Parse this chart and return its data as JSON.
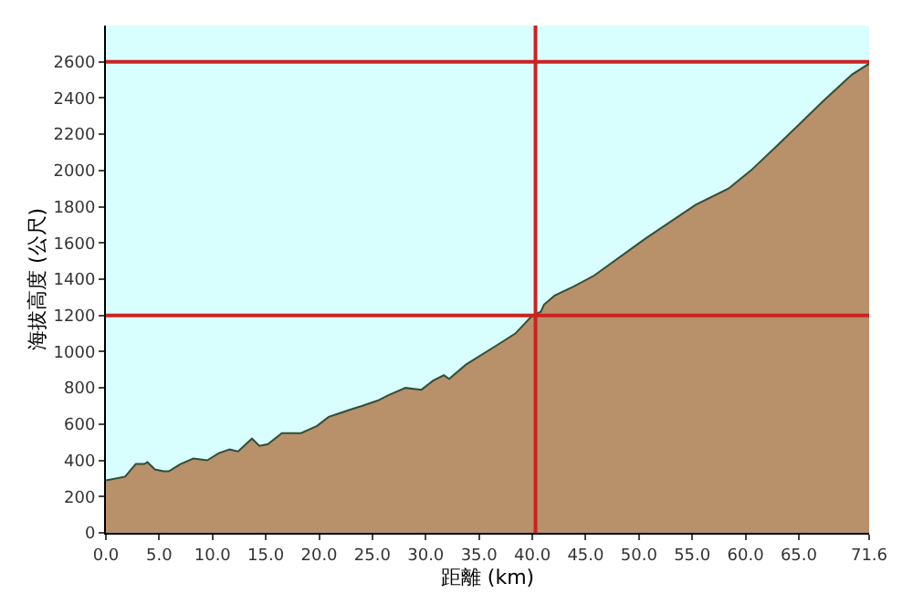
{
  "chart_data": {
    "type": "area",
    "xlabel": "距離 (km)",
    "ylabel": "海拔高度 (公尺)",
    "series": [
      {
        "color": "#b8906a",
        "x": [
          0,
          1.8,
          2.8,
          3.6,
          3.9,
          4.6,
          5.4,
          5.9,
          7.0,
          8.2,
          9.5,
          10.6,
          11.6,
          12.4,
          13.7,
          14.4,
          15.2,
          16.5,
          18.3,
          19.8,
          20.9,
          21.9,
          22.9,
          24.0,
          25.5,
          26.5,
          28.1,
          29.6,
          30.7,
          31.7,
          32.2,
          33.8,
          36.8,
          38.4,
          40.0,
          40.8,
          41.1,
          42.1,
          43.9,
          45.8,
          50.5,
          55.3,
          58.4,
          60.5,
          63.2,
          67.4,
          70.0,
          71.6
        ],
        "values": [
          290,
          310,
          380,
          380,
          390,
          350,
          340,
          340,
          380,
          410,
          400,
          440,
          460,
          450,
          520,
          480,
          490,
          550,
          550,
          590,
          640,
          660,
          680,
          700,
          730,
          760,
          800,
          790,
          840,
          870,
          850,
          930,
          1040,
          1100,
          1200,
          1220,
          1260,
          1310,
          1360,
          1420,
          1620,
          1810,
          1900,
          2000,
          2150,
          2390,
          2530,
          2590
        ]
      }
    ],
    "xlim": [
      0,
      71.6
    ],
    "xticks": [
      {
        "value": 0,
        "label": "0.0"
      },
      {
        "value": 5,
        "label": "5.0"
      },
      {
        "value": 10,
        "label": "10.0"
      },
      {
        "value": 15,
        "label": "15.0"
      },
      {
        "value": 20,
        "label": "20.0"
      },
      {
        "value": 25,
        "label": "25.0"
      },
      {
        "value": 30,
        "label": "30.0"
      },
      {
        "value": 35,
        "label": "35.0"
      },
      {
        "value": 40,
        "label": "40.0"
      },
      {
        "value": 45,
        "label": "45.0"
      },
      {
        "value": 50,
        "label": "50.0"
      },
      {
        "value": 55,
        "label": "55.0"
      },
      {
        "value": 60,
        "label": "60.0"
      },
      {
        "value": 65,
        "label": "65.0"
      },
      {
        "value": 71.6,
        "label": "71.6"
      }
    ],
    "ylim": [
      0,
      2800
    ],
    "yticks": [
      0,
      200,
      400,
      600,
      800,
      1000,
      1200,
      1400,
      1600,
      1800,
      2000,
      2200,
      2400,
      2600
    ],
    "ref_lines": [
      {
        "axis": "y",
        "value": 2600,
        "color": "#cc2222"
      },
      {
        "axis": "y",
        "value": 1200,
        "color": "#cc2222"
      },
      {
        "axis": "x",
        "value": 40.3,
        "color": "#cc2222"
      }
    ],
    "grid": false,
    "legend": false
  }
}
